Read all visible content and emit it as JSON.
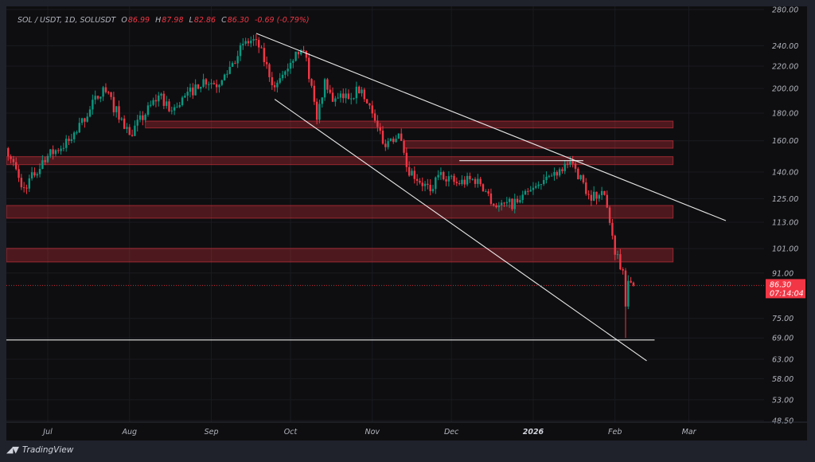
{
  "header": {
    "symbol": "SOL / USDT, 1D, SOLUSDT",
    "open_label": "O",
    "open": "86.99",
    "high_label": "H",
    "high": "87.98",
    "low_label": "L",
    "low": "82.86",
    "close_label": "C",
    "close": "86.30",
    "change": "-0.69 (-0.79%)"
  },
  "price_badge": {
    "price": "86.30",
    "countdown": "07:14:04"
  },
  "brand": {
    "name": "TradingView",
    "logo_text": "TV"
  },
  "colors": {
    "up": "#089981",
    "down": "#f23645",
    "zone": "#f23645",
    "line": "#ffffff",
    "background": "#0e0e10"
  },
  "chart_data": {
    "type": "candlestick",
    "scale": "log",
    "ylim": [
      48.5,
      280
    ],
    "xlim": [
      "2025-06-15",
      "2026-03-20"
    ],
    "grid": true,
    "y_ticks": [
      "280.00",
      "240.00",
      "220.00",
      "200.00",
      "180.00",
      "160.00",
      "140.00",
      "125.00",
      "113.00",
      "101.00",
      "91.00",
      "75.00",
      "69.00",
      "63.00",
      "58.00",
      "53.00",
      "48.50"
    ],
    "x_ticks": [
      {
        "label": "Jul",
        "date": "2025-07-01"
      },
      {
        "label": "Aug",
        "date": "2025-08-01"
      },
      {
        "label": "Sep",
        "date": "2025-09-01"
      },
      {
        "label": "Oct",
        "date": "2025-10-01"
      },
      {
        "label": "Nov",
        "date": "2025-11-01"
      },
      {
        "label": "Dec",
        "date": "2025-12-01"
      },
      {
        "label": "2026",
        "date": "2026-01-01"
      },
      {
        "label": "Feb",
        "date": "2026-02-01"
      },
      {
        "label": "Mar",
        "date": "2026-03-01"
      }
    ],
    "approx_closes": [
      [
        "2025-06-15",
        155
      ],
      [
        "2025-06-22",
        131
      ],
      [
        "2025-07-01",
        150
      ],
      [
        "2025-07-10",
        161
      ],
      [
        "2025-07-22",
        201
      ],
      [
        "2025-08-01",
        164
      ],
      [
        "2025-08-12",
        194
      ],
      [
        "2025-08-17",
        182
      ],
      [
        "2025-08-29",
        208
      ],
      [
        "2025-09-04",
        203
      ],
      [
        "2025-09-13",
        242
      ],
      [
        "2025-09-18",
        246
      ],
      [
        "2025-09-25",
        201
      ],
      [
        "2025-09-28",
        212
      ],
      [
        "2025-10-03",
        234
      ],
      [
        "2025-10-07",
        228
      ],
      [
        "2025-10-11",
        175
      ],
      [
        "2025-10-14",
        208
      ],
      [
        "2025-10-17",
        189
      ],
      [
        "2025-10-28",
        199
      ],
      [
        "2025-10-31",
        186
      ],
      [
        "2025-11-05",
        158
      ],
      [
        "2025-11-11",
        165
      ],
      [
        "2025-11-14",
        143
      ],
      [
        "2025-11-23",
        129
      ],
      [
        "2025-11-27",
        140
      ],
      [
        "2025-12-03",
        133.5
      ],
      [
        "2025-12-11",
        136
      ],
      [
        "2025-12-18",
        120.5
      ],
      [
        "2025-12-26",
        123
      ],
      [
        "2026-01-04",
        133
      ],
      [
        "2026-01-13",
        145
      ],
      [
        "2026-01-17",
        142
      ],
      [
        "2026-01-22",
        127
      ],
      [
        "2026-01-28",
        127
      ],
      [
        "2026-01-30",
        112.7
      ],
      [
        "2026-02-01",
        98.4
      ],
      [
        "2026-02-04",
        92
      ],
      [
        "2026-02-05",
        78.9
      ],
      [
        "2026-02-06",
        88
      ],
      [
        "2026-02-08",
        86.3
      ]
    ],
    "notable_low": {
      "date": "2026-02-05",
      "price": 69
    },
    "last_price": 86.3,
    "zones": [
      {
        "from": "2025-08-07",
        "to": "2026-02-23",
        "low": 169,
        "high": 174
      },
      {
        "from": "2025-11-13",
        "to": "2026-02-23",
        "low": 155,
        "high": 160
      },
      {
        "from": "2025-06-15",
        "to": "2026-02-23",
        "low": 144.5,
        "high": 149.5
      },
      {
        "from": "2025-06-15",
        "to": "2026-02-23",
        "low": 115,
        "high": 121.4
      },
      {
        "from": "2025-06-15",
        "to": "2026-02-23",
        "low": 95.4,
        "high": 101.1
      }
    ],
    "lines": [
      {
        "kind": "trend-upper",
        "from": [
          "2025-09-18",
          253
        ],
        "to": [
          "2026-03-15",
          113.8
        ]
      },
      {
        "kind": "trend-lower",
        "from": [
          "2025-09-25",
          191
        ],
        "to": [
          "2026-02-13",
          62.6
        ]
      },
      {
        "kind": "support",
        "from": [
          "2025-06-15",
          68.4
        ],
        "to": [
          "2026-02-16",
          68.4
        ]
      },
      {
        "kind": "resistance",
        "from": [
          "2025-12-04",
          147
        ],
        "to": [
          "2026-01-20",
          147
        ]
      }
    ]
  }
}
